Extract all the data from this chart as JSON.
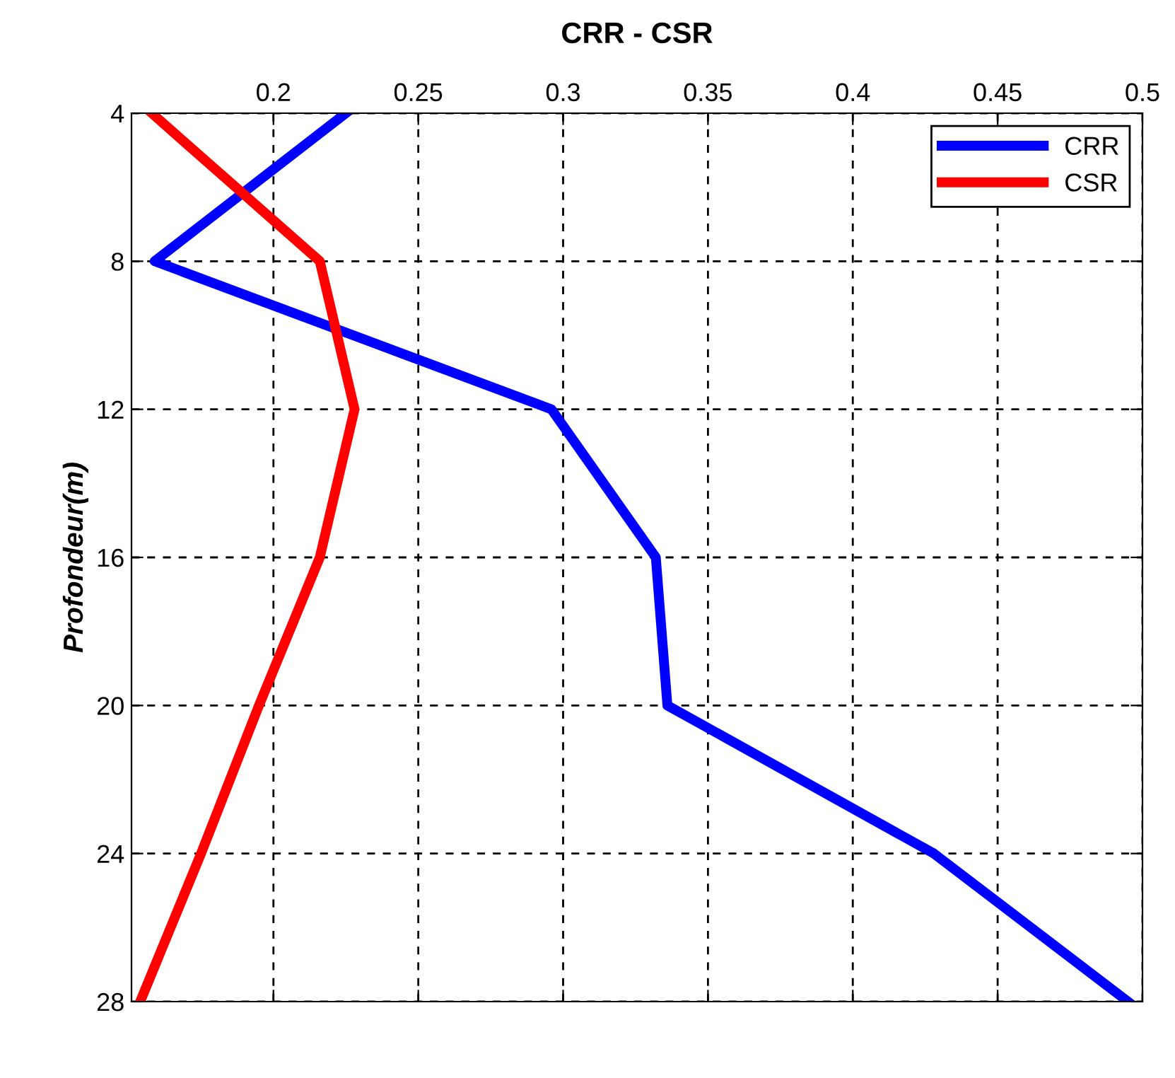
{
  "chart_data": {
    "type": "line",
    "title": "CRR - CSR",
    "ylabel": "Profondeur(m)",
    "series": [
      {
        "name": "CRR",
        "color": "#0000ff",
        "x": [
          0.225,
          0.159,
          0.296,
          0.332,
          0.336,
          0.428,
          0.495
        ],
        "values": [
          4,
          8,
          12,
          16,
          20,
          24,
          28
        ]
      },
      {
        "name": "CSR",
        "color": "#ff0000",
        "x": [
          0.158,
          0.216,
          0.228,
          0.216,
          0.195,
          0.175,
          0.154
        ],
        "values": [
          4,
          8,
          12,
          16,
          20,
          24,
          28
        ]
      }
    ],
    "xlim": [
      0.151,
      0.5
    ],
    "xticks": [
      0.2,
      0.25,
      0.3,
      0.35,
      0.4,
      0.45,
      0.5
    ],
    "ylim": [
      28,
      4
    ],
    "yticks": [
      4,
      8,
      12,
      16,
      20,
      24,
      28
    ],
    "grid": true,
    "legend": "top right",
    "line_style": "solid",
    "marker": "none"
  }
}
